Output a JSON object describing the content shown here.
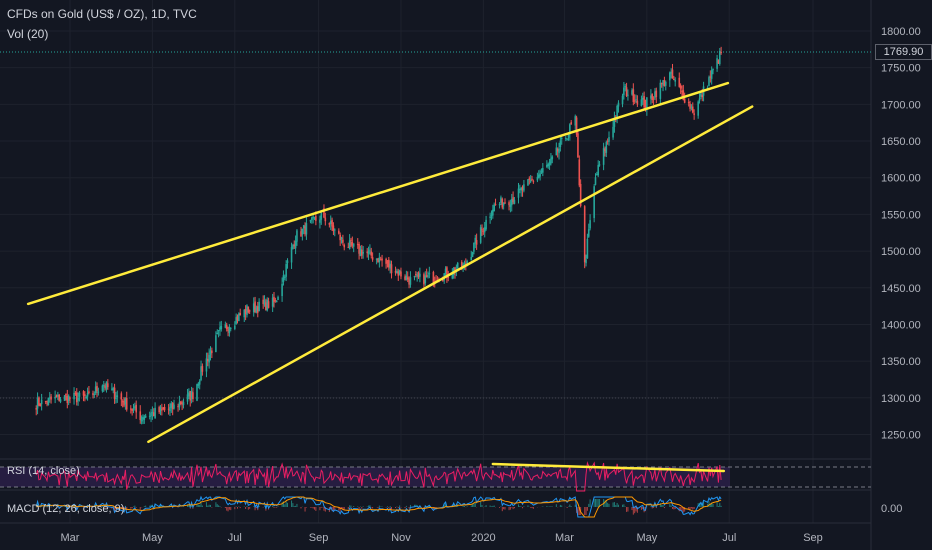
{
  "header": {
    "title": "CFDs on Gold (US$ / OZ), 1D, TVC",
    "volume_label": "Vol (20)"
  },
  "price_tag": "1769.90",
  "indicators": {
    "rsi_label": "RSI (14, close)",
    "macd_label": "MACD (12, 26, close, 9)",
    "macd_axis_label": "0.00"
  },
  "colors": {
    "background": "#131722",
    "grid": "#1e222d",
    "up_candle": "#26a69a",
    "down_candle": "#ef5350",
    "trendline": "#ffeb3b",
    "rsi_band": "#2a1f47",
    "rsi_line": "#e91e63",
    "macd_line": "#2196f3",
    "signal_line": "#ff9800"
  },
  "chart_data": {
    "type": "candlestick",
    "title": "CFDs on Gold (US$ / OZ), 1D, TVC",
    "x_ticks": [
      "Mar",
      "May",
      "Jul",
      "Sep",
      "Nov",
      "2020",
      "Mar",
      "May",
      "Jul",
      "Sep"
    ],
    "y_ticks": [
      1250,
      1300,
      1350,
      1400,
      1450,
      1500,
      1550,
      1600,
      1650,
      1700,
      1750,
      1800
    ],
    "y_range": [
      1210,
      1820
    ],
    "last_price": 1769.9,
    "close_path": [
      [
        "2019-02-04",
        1292
      ],
      [
        "2019-02-22",
        1300
      ],
      [
        "2019-03-15",
        1300
      ],
      [
        "2019-03-25",
        1320
      ],
      [
        "2019-04-22",
        1275
      ],
      [
        "2019-05-15",
        1285
      ],
      [
        "2019-05-31",
        1305
      ],
      [
        "2019-06-07",
        1340
      ],
      [
        "2019-06-20",
        1390
      ],
      [
        "2019-07-10",
        1420
      ],
      [
        "2019-07-31",
        1430
      ],
      [
        "2019-08-15",
        1520
      ],
      [
        "2019-09-04",
        1550
      ],
      [
        "2019-09-20",
        1510
      ],
      [
        "2019-10-15",
        1490
      ],
      [
        "2019-11-08",
        1460
      ],
      [
        "2019-11-29",
        1465
      ],
      [
        "2019-12-18",
        1480
      ],
      [
        "2020-01-08",
        1560
      ],
      [
        "2020-01-25",
        1575
      ],
      [
        "2020-02-20",
        1620
      ],
      [
        "2020-03-09",
        1680
      ],
      [
        "2020-03-16",
        1480
      ],
      [
        "2020-03-24",
        1600
      ],
      [
        "2020-04-14",
        1720
      ],
      [
        "2020-04-30",
        1700
      ],
      [
        "2020-05-18",
        1740
      ],
      [
        "2020-06-05",
        1690
      ],
      [
        "2020-06-25",
        1770
      ]
    ],
    "trendlines": [
      {
        "from": [
          "2019-01-29",
          1428
        ],
        "to": [
          "2020-06-30",
          1729
        ]
      },
      {
        "from": [
          "2019-04-28",
          1240
        ],
        "to": [
          "2020-07-18",
          1697
        ]
      }
    ],
    "rsi_trendline": {
      "from": [
        "2020-01-08",
        70
      ],
      "to": [
        "2020-06-27",
        64
      ]
    }
  }
}
